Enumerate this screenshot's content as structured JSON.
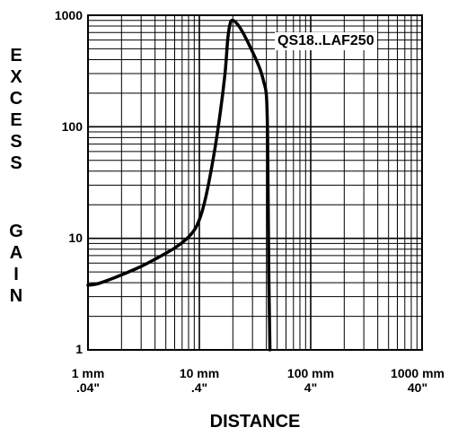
{
  "chart_data": {
    "type": "line",
    "annotation": "QS18..LAF250",
    "xlabel": "DISTANCE",
    "ylabel": "EXCESS GAIN",
    "xscale": "log",
    "yscale": "log",
    "xlim": [
      1,
      1000
    ],
    "ylim": [
      1,
      1000
    ],
    "grid": true,
    "x_tick_labels": [
      {
        "metric": "1 mm",
        "imperial": ".04\""
      },
      {
        "metric": "10 mm",
        "imperial": ".4\""
      },
      {
        "metric": "100 mm",
        "imperial": "4\""
      },
      {
        "metric": "1000 mm",
        "imperial": "40\""
      }
    ],
    "x_tick_values": [
      1,
      10,
      100,
      1000
    ],
    "y_tick_labels": [
      "1000",
      "100",
      "10",
      "1"
    ],
    "y_tick_values": [
      1000,
      100,
      10,
      1
    ],
    "series": [
      {
        "x": [
          1,
          1.2,
          1.5,
          2,
          3,
          4,
          6,
          8,
          9.5,
          11,
          13,
          15,
          17,
          18,
          19,
          20,
          22,
          25,
          30,
          35,
          38,
          40,
          41,
          42,
          43
        ],
        "y": [
          3.8,
          3.9,
          4.2,
          4.7,
          5.6,
          6.5,
          8.2,
          10.3,
          13,
          20,
          45,
          110,
          300,
          620,
          860,
          900,
          830,
          680,
          470,
          330,
          250,
          190,
          80,
          5,
          1
        ]
      }
    ],
    "line_color": "#000000"
  }
}
